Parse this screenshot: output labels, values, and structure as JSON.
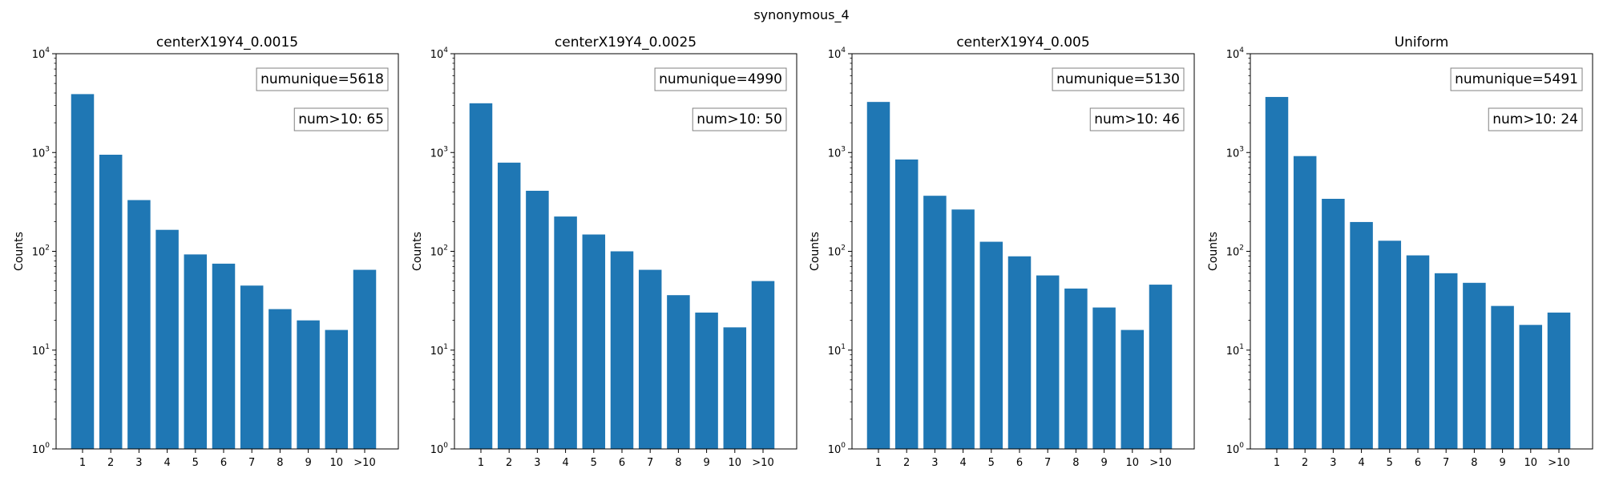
{
  "figure": {
    "suptitle": "synonymous_4",
    "colors": {
      "bar": "#1f77b4",
      "axes": "#000000",
      "annotation_border": "#808080"
    }
  },
  "chart_data": [
    {
      "type": "bar",
      "title": "centerX19Y4_0.0015",
      "xlabel": "",
      "ylabel": "Counts",
      "yscale": "log",
      "ylim": [
        1,
        10000
      ],
      "grid": false,
      "categories": [
        "1",
        "2",
        "3",
        "4",
        "5",
        "6",
        "7",
        "8",
        "9",
        "10",
        ">10"
      ],
      "values": [
        3900,
        950,
        330,
        165,
        93,
        75,
        45,
        26,
        20,
        16,
        65
      ],
      "annotations": [
        "numunique=5618",
        "num>10: 65"
      ]
    },
    {
      "type": "bar",
      "title": "centerX19Y4_0.0025",
      "xlabel": "",
      "ylabel": "Counts",
      "yscale": "log",
      "ylim": [
        1,
        10000
      ],
      "grid": false,
      "categories": [
        "1",
        "2",
        "3",
        "4",
        "5",
        "6",
        "7",
        "8",
        "9",
        "10",
        ">10"
      ],
      "values": [
        3150,
        790,
        410,
        225,
        148,
        100,
        65,
        36,
        24,
        17,
        50
      ],
      "annotations": [
        "numunique=4990",
        "num>10: 50"
      ]
    },
    {
      "type": "bar",
      "title": "centerX19Y4_0.005",
      "xlabel": "",
      "ylabel": "Counts",
      "yscale": "log",
      "ylim": [
        1,
        10000
      ],
      "grid": false,
      "categories": [
        "1",
        "2",
        "3",
        "4",
        "5",
        "6",
        "7",
        "8",
        "9",
        "10",
        ">10"
      ],
      "values": [
        3250,
        850,
        365,
        265,
        125,
        89,
        57,
        42,
        27,
        16,
        46
      ],
      "annotations": [
        "numunique=5130",
        "num>10: 46"
      ]
    },
    {
      "type": "bar",
      "title": "Uniform",
      "xlabel": "",
      "ylabel": "Counts",
      "yscale": "log",
      "ylim": [
        1,
        10000
      ],
      "grid": false,
      "categories": [
        "1",
        "2",
        "3",
        "4",
        "5",
        "6",
        "7",
        "8",
        "9",
        "10",
        ">10"
      ],
      "values": [
        3650,
        920,
        340,
        198,
        128,
        91,
        60,
        48,
        28,
        18,
        24
      ],
      "annotations": [
        "numunique=5491",
        "num>10: 24"
      ]
    }
  ]
}
